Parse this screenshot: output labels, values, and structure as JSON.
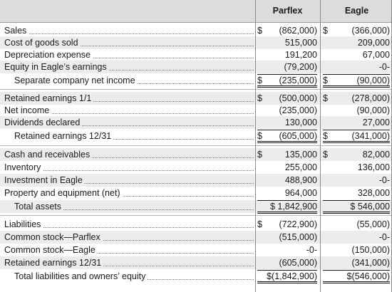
{
  "header": {
    "col_a": "Parflex",
    "col_b": "Eagle"
  },
  "rows": [
    {
      "label": "Sales",
      "indent": false,
      "a_sym": "$",
      "a": "(862,000)",
      "b_sym": "$",
      "b": "(366,000)",
      "total": false,
      "double": false
    },
    {
      "label": "Cost of goods sold",
      "indent": false,
      "a_sym": "",
      "a": "515,000",
      "b_sym": "",
      "b": "209,000",
      "total": false,
      "double": false
    },
    {
      "label": "Depreciation expense",
      "indent": false,
      "a_sym": "",
      "a": "191,200",
      "b_sym": "",
      "b": "67,000",
      "total": false,
      "double": false
    },
    {
      "label": "Equity in Eagle’s earnings",
      "indent": false,
      "a_sym": "",
      "a": "(79,200)",
      "b_sym": "",
      "b": "-0-",
      "total": false,
      "double": false
    },
    {
      "label": "Separate company net income",
      "indent": true,
      "a_sym": "$",
      "a": "(235,000)",
      "b_sym": "$",
      "b": "(90,000)",
      "total": true,
      "double": true
    },
    {
      "label": "Retained earnings 1/1",
      "indent": false,
      "a_sym": "$",
      "a": "(500,000)",
      "b_sym": "$",
      "b": "(278,000)",
      "total": false,
      "double": false
    },
    {
      "label": "Net income",
      "indent": false,
      "a_sym": "",
      "a": "(235,000)",
      "b_sym": "",
      "b": "(90,000)",
      "total": false,
      "double": false
    },
    {
      "label": "Dividends declared",
      "indent": false,
      "a_sym": "",
      "a": "130,000",
      "b_sym": "",
      "b": "27,000",
      "total": false,
      "double": false
    },
    {
      "label": "Retained earnings 12/31",
      "indent": true,
      "a_sym": "$",
      "a": "(605,000)",
      "b_sym": "$",
      "b": "(341,000)",
      "total": true,
      "double": true
    },
    {
      "label": "Cash and receivables",
      "indent": false,
      "a_sym": "$",
      "a": "135,000",
      "b_sym": "$",
      "b": "82,000",
      "total": false,
      "double": false
    },
    {
      "label": "Inventory",
      "indent": false,
      "a_sym": "",
      "a": "255,000",
      "b_sym": "",
      "b": "136,000",
      "total": false,
      "double": false
    },
    {
      "label": "Investment in Eagle",
      "indent": false,
      "a_sym": "",
      "a": "488,900",
      "b_sym": "",
      "b": "-0-",
      "total": false,
      "double": false
    },
    {
      "label": "Property and equipment (net)",
      "indent": false,
      "a_sym": "",
      "a": "964,000",
      "b_sym": "",
      "b": "328,000",
      "total": false,
      "double": false
    },
    {
      "label": "Total assets",
      "indent": true,
      "a_sym": "",
      "a": "$ 1,842,900",
      "b_sym": "",
      "b": "$ 546,000",
      "total": true,
      "double": true
    },
    {
      "label": "Liabilities",
      "indent": false,
      "a_sym": "$",
      "a": "(722,900)",
      "b_sym": "",
      "b": "(55,000)",
      "total": false,
      "double": false
    },
    {
      "label": "Common stock—Parflex",
      "indent": false,
      "a_sym": "",
      "a": "(515,000)",
      "b_sym": "",
      "b": "-0-",
      "total": false,
      "double": false
    },
    {
      "label": "Common stock—Eagle",
      "indent": false,
      "a_sym": "",
      "a": "-0-",
      "b_sym": "",
      "b": "(150,000)",
      "total": false,
      "double": false
    },
    {
      "label": "Retained earnings 12/31",
      "indent": false,
      "a_sym": "",
      "a": "(605,000)",
      "b_sym": "",
      "b": "(341,000)",
      "total": false,
      "double": false
    },
    {
      "label": "Total liabilities and owners’ equity",
      "indent": true,
      "a_sym": "",
      "a": "$(1,842,900)",
      "b_sym": "",
      "b": "$(546,000)",
      "total": true,
      "double": true
    }
  ]
}
